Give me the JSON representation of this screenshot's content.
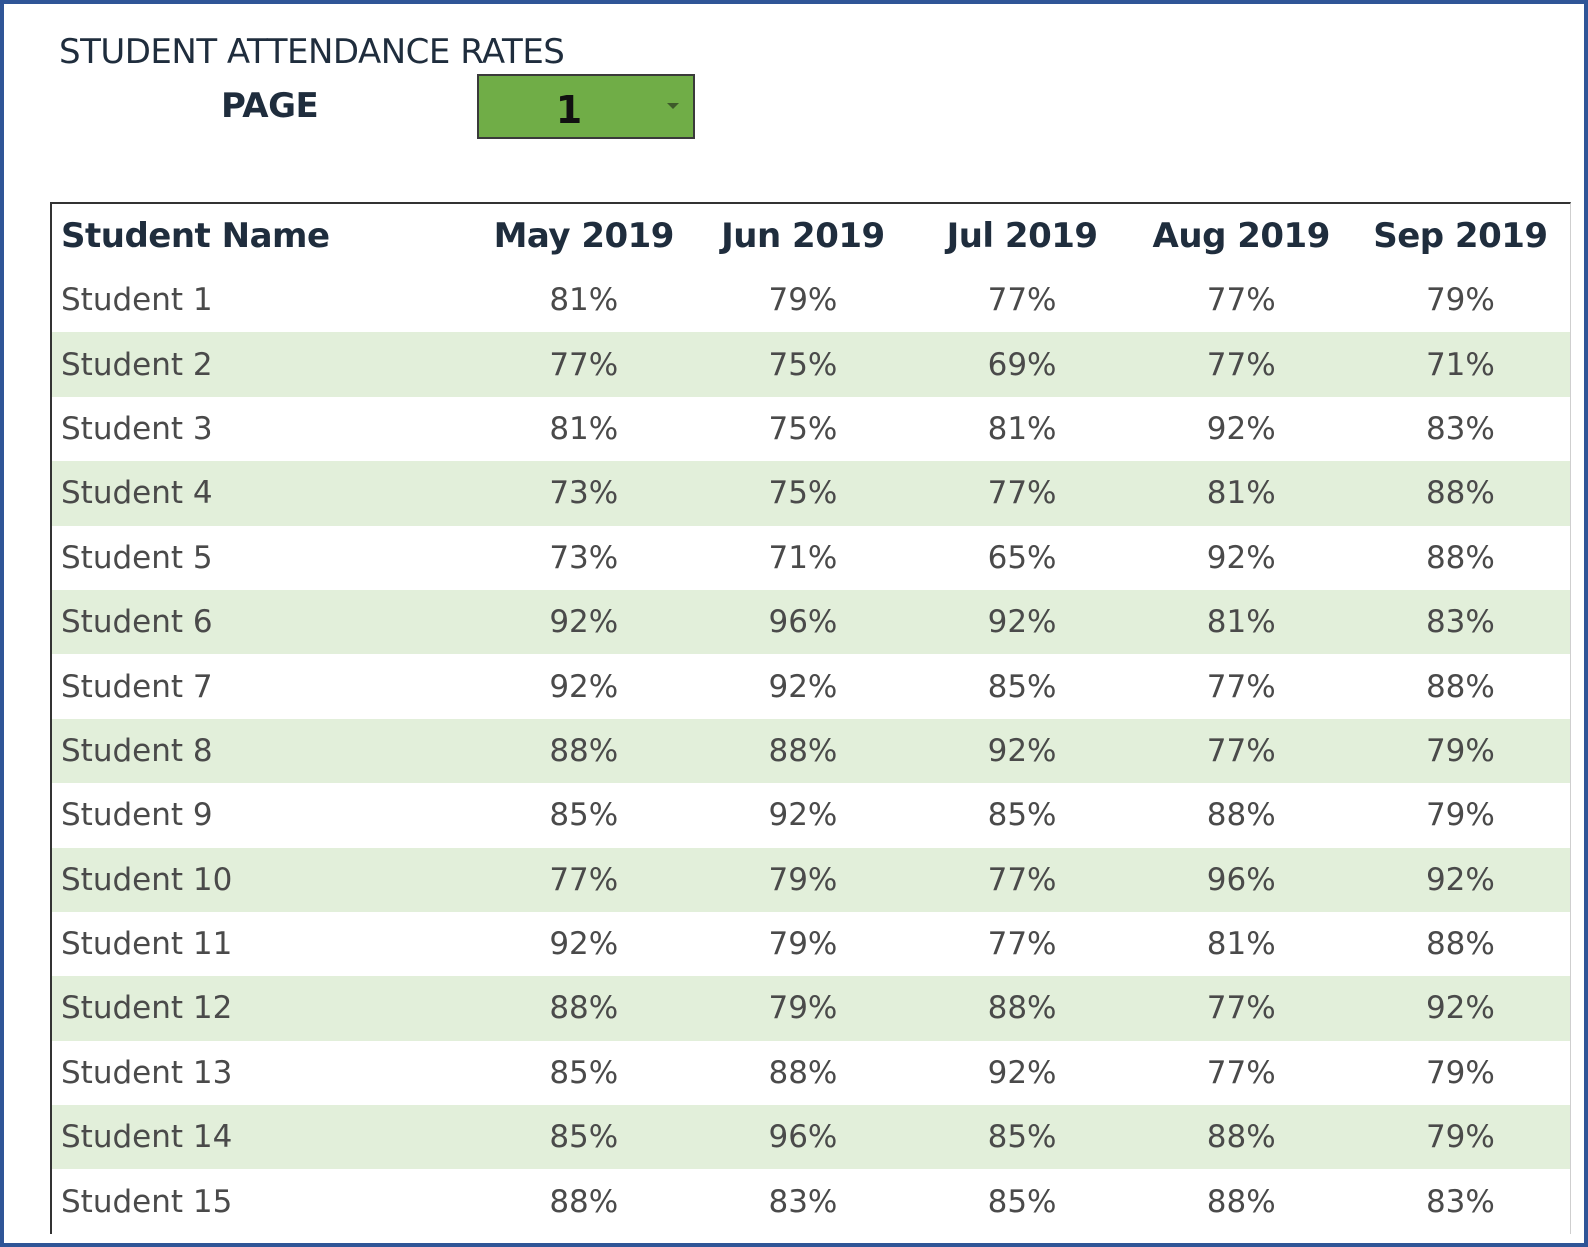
{
  "header": {
    "title": "STUDENT ATTENDANCE RATES",
    "page_label": "PAGE",
    "page_value": "1"
  },
  "table": {
    "columns": [
      "Student Name",
      "May 2019",
      "Jun 2019",
      "Jul 2019",
      "Aug 2019",
      "Sep 2019"
    ],
    "rows": [
      {
        "name": "Student 1",
        "values": [
          "81%",
          "79%",
          "77%",
          "77%",
          "79%"
        ]
      },
      {
        "name": "Student 2",
        "values": [
          "77%",
          "75%",
          "69%",
          "77%",
          "71%"
        ]
      },
      {
        "name": "Student 3",
        "values": [
          "81%",
          "75%",
          "81%",
          "92%",
          "83%"
        ]
      },
      {
        "name": "Student 4",
        "values": [
          "73%",
          "75%",
          "77%",
          "81%",
          "88%"
        ]
      },
      {
        "name": "Student 5",
        "values": [
          "73%",
          "71%",
          "65%",
          "92%",
          "88%"
        ]
      },
      {
        "name": "Student 6",
        "values": [
          "92%",
          "96%",
          "92%",
          "81%",
          "83%"
        ]
      },
      {
        "name": "Student 7",
        "values": [
          "92%",
          "92%",
          "85%",
          "77%",
          "88%"
        ]
      },
      {
        "name": "Student 8",
        "values": [
          "88%",
          "88%",
          "92%",
          "77%",
          "79%"
        ]
      },
      {
        "name": "Student 9",
        "values": [
          "85%",
          "92%",
          "85%",
          "88%",
          "79%"
        ]
      },
      {
        "name": "Student 10",
        "values": [
          "77%",
          "79%",
          "77%",
          "96%",
          "92%"
        ]
      },
      {
        "name": "Student 11",
        "values": [
          "92%",
          "79%",
          "77%",
          "81%",
          "88%"
        ]
      },
      {
        "name": "Student 12",
        "values": [
          "88%",
          "79%",
          "88%",
          "77%",
          "92%"
        ]
      },
      {
        "name": "Student 13",
        "values": [
          "85%",
          "88%",
          "92%",
          "77%",
          "79%"
        ]
      },
      {
        "name": "Student 14",
        "values": [
          "85%",
          "96%",
          "85%",
          "88%",
          "79%"
        ]
      },
      {
        "name": "Student 15",
        "values": [
          "88%",
          "83%",
          "85%",
          "88%",
          "83%"
        ]
      }
    ]
  },
  "colors": {
    "frame_border": "#2f5597",
    "selector_fill": "#70ad47",
    "band_fill": "#e2efda"
  },
  "icons": {
    "selector_caret": "chevron-down-icon"
  }
}
